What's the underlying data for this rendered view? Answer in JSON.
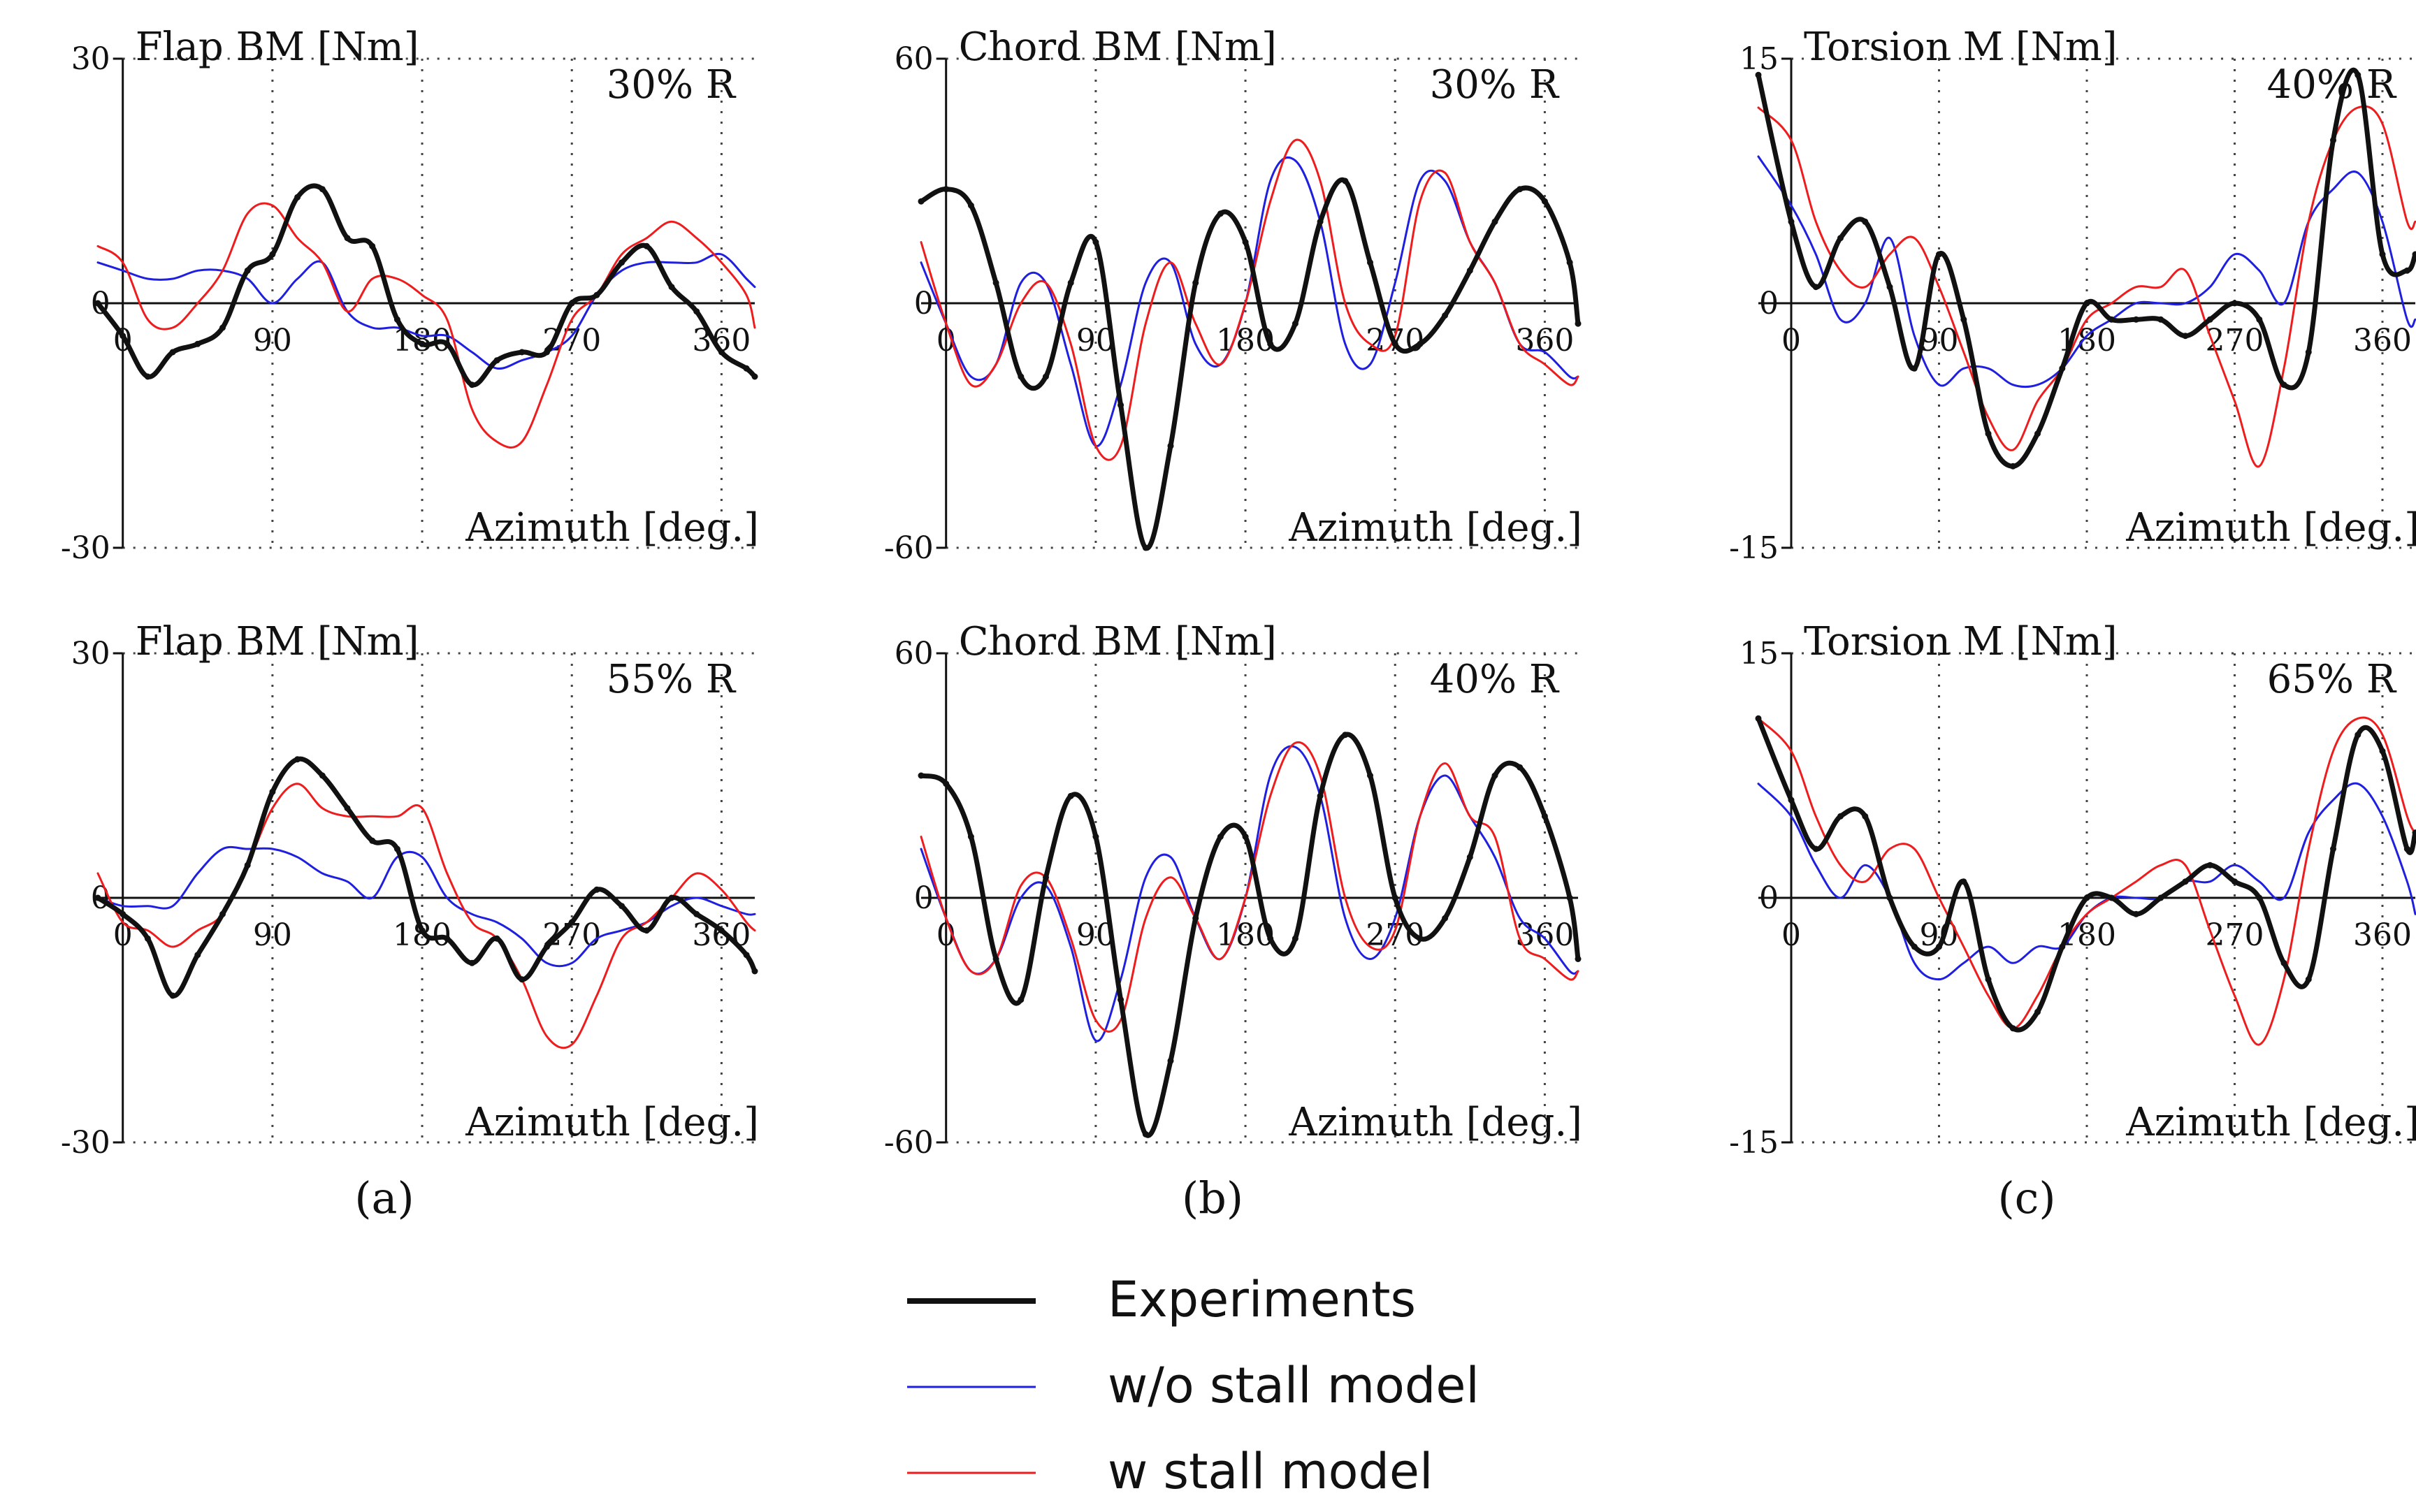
{
  "colors": {
    "experiments": "#111111",
    "without_stall": "#1f1fe0",
    "with_stall": "#ee1c1c"
  },
  "captions": [
    "(a)",
    "(b)",
    "(c)"
  ],
  "legend": [
    {
      "label": "Experiments",
      "series": "experiments"
    },
    {
      "label": "w/o stall model",
      "series": "without_stall"
    },
    {
      "label": "w stall model",
      "series": "with_stall"
    }
  ],
  "chart_data": [
    {
      "type": "line",
      "title": "Flap BM [Nm]",
      "annotation": "30% R",
      "xlabel": "Azimuth [deg.]",
      "ylabel": "Flap BM [Nm]",
      "xlim": [
        -15,
        380
      ],
      "ylim": [
        -30,
        30
      ],
      "xticks": [
        0,
        90,
        180,
        270,
        360
      ],
      "yticks": [
        -30,
        0,
        30
      ],
      "x": [
        -15,
        0,
        15,
        30,
        45,
        60,
        75,
        90,
        105,
        120,
        135,
        150,
        165,
        180,
        195,
        210,
        225,
        240,
        255,
        270,
        285,
        300,
        315,
        330,
        345,
        360,
        375,
        380
      ],
      "series": [
        {
          "name": "Experiments",
          "key": "experiments",
          "values": [
            0,
            -4,
            -9,
            -6,
            -5,
            -3,
            4,
            6,
            13,
            14,
            8,
            7,
            -2,
            -5,
            -5,
            -10,
            -7,
            -6,
            -6,
            0,
            1,
            5,
            7,
            2,
            -1,
            -6,
            -8,
            -9
          ]
        },
        {
          "name": "w/o stall model",
          "key": "without_stall",
          "values": [
            5,
            4,
            3,
            3,
            4,
            4,
            3,
            0,
            3,
            5,
            -1,
            -3,
            -3,
            -4,
            -4,
            -6,
            -8,
            -7,
            -6,
            -4,
            1,
            4,
            5,
            5,
            5,
            6,
            3,
            2
          ]
        },
        {
          "name": "w stall model",
          "key": "with_stall",
          "values": [
            7,
            5,
            -2,
            -3,
            0,
            4,
            11,
            12,
            8,
            5,
            -1,
            3,
            3,
            1,
            -2,
            -13,
            -17,
            -17,
            -10,
            -2,
            1,
            6,
            8,
            10,
            8,
            5,
            1,
            -3
          ]
        }
      ]
    },
    {
      "type": "line",
      "title": "Chord BM [Nm]",
      "annotation": "30% R",
      "xlabel": "Azimuth [deg.]",
      "ylabel": "Chord BM [Nm]",
      "xlim": [
        -15,
        380
      ],
      "ylim": [
        -60,
        60
      ],
      "xticks": [
        0,
        90,
        180,
        270,
        360
      ],
      "yticks": [
        -60,
        0,
        60
      ],
      "x": [
        -15,
        0,
        15,
        30,
        45,
        60,
        75,
        90,
        105,
        120,
        135,
        150,
        165,
        180,
        195,
        210,
        225,
        240,
        255,
        270,
        285,
        300,
        315,
        330,
        345,
        360,
        375,
        380
      ],
      "series": [
        {
          "name": "Experiments",
          "key": "experiments",
          "values": [
            25,
            28,
            24,
            5,
            -18,
            -18,
            5,
            15,
            -25,
            -60,
            -35,
            5,
            22,
            15,
            -10,
            -5,
            20,
            30,
            10,
            -10,
            -10,
            -3,
            8,
            20,
            28,
            25,
            10,
            -5
          ]
        },
        {
          "name": "w/o stall model",
          "key": "without_stall",
          "values": [
            10,
            -5,
            -18,
            -15,
            5,
            5,
            -15,
            -35,
            -20,
            5,
            10,
            -10,
            -15,
            0,
            30,
            35,
            20,
            -10,
            -15,
            5,
            30,
            30,
            15,
            5,
            -10,
            -12,
            -18,
            -18
          ]
        },
        {
          "name": "w stall model",
          "key": "with_stall",
          "values": [
            15,
            -5,
            -20,
            -15,
            0,
            5,
            -10,
            -35,
            -35,
            -5,
            10,
            -5,
            -15,
            0,
            25,
            40,
            30,
            0,
            -10,
            -8,
            25,
            32,
            15,
            5,
            -10,
            -15,
            -20,
            -18
          ]
        }
      ]
    },
    {
      "type": "line",
      "title": "Torsion M [Nm]",
      "annotation": "40% R",
      "xlabel": "Azimuth [deg.]",
      "ylabel": "Torsion M [Nm]",
      "xlim": [
        -20,
        380
      ],
      "ylim": [
        -15,
        15
      ],
      "xticks": [
        0,
        90,
        180,
        270,
        360
      ],
      "yticks": [
        -15,
        0,
        15
      ],
      "x": [
        -20,
        0,
        15,
        30,
        45,
        60,
        75,
        90,
        105,
        120,
        135,
        150,
        165,
        180,
        195,
        210,
        225,
        240,
        255,
        270,
        285,
        300,
        315,
        330,
        345,
        360,
        375,
        380
      ],
      "series": [
        {
          "name": "Experiments",
          "key": "experiments",
          "values": [
            14,
            5,
            1,
            4,
            5,
            1,
            -4,
            3,
            -1,
            -8,
            -10,
            -8,
            -4,
            0,
            -1,
            -1,
            -1,
            -2,
            -1,
            0,
            -1,
            -5,
            -3,
            10,
            14,
            3,
            2,
            3
          ]
        },
        {
          "name": "w/o stall model",
          "key": "without_stall",
          "values": [
            9,
            6,
            3,
            -1,
            0,
            4,
            -2,
            -5,
            -4,
            -4,
            -5,
            -5,
            -4,
            -2,
            -1,
            0,
            0,
            0,
            1,
            3,
            2,
            0,
            5,
            7,
            8,
            5,
            -1,
            -1
          ]
        },
        {
          "name": "w stall model",
          "key": "with_stall",
          "values": [
            12,
            10,
            5,
            2,
            1,
            3,
            4,
            1,
            -3,
            -7,
            -9,
            -6,
            -4,
            -1,
            0,
            1,
            1,
            2,
            -2,
            -6,
            -10,
            -4,
            5,
            10,
            12,
            11,
            5,
            5
          ]
        }
      ]
    },
    {
      "type": "line",
      "title": "Flap BM [Nm]",
      "annotation": "55% R",
      "xlabel": "Azimuth [deg.]",
      "ylabel": "Flap BM [Nm]",
      "xlim": [
        -15,
        380
      ],
      "ylim": [
        -30,
        30
      ],
      "xticks": [
        0,
        90,
        180,
        270,
        360
      ],
      "yticks": [
        -30,
        0,
        30
      ],
      "x": [
        -15,
        0,
        15,
        30,
        45,
        60,
        75,
        90,
        105,
        120,
        135,
        150,
        165,
        180,
        195,
        210,
        225,
        240,
        255,
        270,
        285,
        300,
        315,
        330,
        345,
        360,
        375,
        380
      ],
      "series": [
        {
          "name": "Experiments",
          "key": "experiments",
          "values": [
            0,
            -2,
            -5,
            -12,
            -7,
            -2,
            4,
            13,
            17,
            15,
            11,
            7,
            6,
            -4,
            -5,
            -8,
            -5,
            -10,
            -6,
            -3,
            1,
            -1,
            -4,
            0,
            -2,
            -4,
            -7,
            -9
          ]
        },
        {
          "name": "w/o stall model",
          "key": "without_stall",
          "values": [
            0,
            -1,
            -1,
            -1,
            3,
            6,
            6,
            6,
            5,
            3,
            2,
            0,
            5,
            5,
            0,
            -2,
            -3,
            -5,
            -8,
            -8,
            -5,
            -4,
            -3,
            -1,
            0,
            -1,
            -2,
            -2
          ]
        },
        {
          "name": "w stall model",
          "key": "with_stall",
          "values": [
            3,
            -3,
            -4,
            -6,
            -4,
            -2,
            4,
            11,
            14,
            11,
            10,
            10,
            10,
            11,
            3,
            -3,
            -5,
            -10,
            -17,
            -18,
            -12,
            -5,
            -3,
            0,
            3,
            1,
            -3,
            -4
          ]
        }
      ]
    },
    {
      "type": "line",
      "title": "Chord BM [Nm]",
      "annotation": "40% R",
      "xlabel": "Azimuth [deg.]",
      "ylabel": "Chord BM [Nm]",
      "xlim": [
        -15,
        380
      ],
      "ylim": [
        -60,
        60
      ],
      "xticks": [
        0,
        90,
        180,
        270,
        360
      ],
      "yticks": [
        -60,
        0,
        60
      ],
      "x": [
        -15,
        0,
        15,
        30,
        45,
        60,
        75,
        90,
        105,
        120,
        135,
        150,
        165,
        180,
        195,
        210,
        225,
        240,
        255,
        270,
        285,
        300,
        315,
        330,
        345,
        360,
        375,
        380
      ],
      "series": [
        {
          "name": "Experiments",
          "key": "experiments",
          "values": [
            30,
            28,
            15,
            -15,
            -25,
            5,
            25,
            15,
            -25,
            -58,
            -40,
            -5,
            15,
            15,
            -10,
            -10,
            25,
            40,
            30,
            0,
            -10,
            -5,
            10,
            30,
            32,
            20,
            0,
            -15
          ]
        },
        {
          "name": "w/o stall model",
          "key": "without_stall",
          "values": [
            12,
            -5,
            -18,
            -15,
            0,
            3,
            -12,
            -35,
            -20,
            5,
            10,
            -5,
            -15,
            0,
            30,
            37,
            25,
            -5,
            -15,
            -5,
            20,
            30,
            20,
            10,
            -5,
            -10,
            -18,
            -18
          ]
        },
        {
          "name": "w stall model",
          "key": "with_stall",
          "values": [
            15,
            -5,
            -18,
            -15,
            3,
            5,
            -10,
            -30,
            -30,
            -5,
            5,
            -5,
            -15,
            0,
            25,
            38,
            30,
            0,
            -12,
            -8,
            20,
            33,
            20,
            15,
            -10,
            -15,
            -20,
            -18
          ]
        }
      ]
    },
    {
      "type": "line",
      "title": "Torsion M [Nm]",
      "annotation": "65% R",
      "xlabel": "Azimuth [deg.]",
      "ylabel": "Torsion M [Nm]",
      "xlim": [
        -20,
        380
      ],
      "ylim": [
        -15,
        15
      ],
      "xticks": [
        0,
        90,
        180,
        270,
        360
      ],
      "yticks": [
        -15,
        0,
        15
      ],
      "x": [
        -20,
        0,
        15,
        30,
        45,
        60,
        75,
        90,
        105,
        120,
        135,
        150,
        165,
        180,
        195,
        210,
        225,
        240,
        255,
        270,
        285,
        300,
        315,
        330,
        345,
        360,
        375,
        380
      ],
      "series": [
        {
          "name": "Experiments",
          "key": "experiments",
          "values": [
            11,
            6,
            3,
            5,
            5,
            0,
            -3,
            -3,
            1,
            -5,
            -8,
            -7,
            -3,
            0,
            0,
            -1,
            0,
            1,
            2,
            1,
            0,
            -4,
            -5,
            3,
            10,
            9,
            3,
            4
          ]
        },
        {
          "name": "w/o stall model",
          "key": "without_stall",
          "values": [
            7,
            5,
            2,
            0,
            2,
            0,
            -4,
            -5,
            -4,
            -3,
            -4,
            -3,
            -3,
            -1,
            0,
            0,
            0,
            1,
            1,
            2,
            1,
            0,
            4,
            6,
            7,
            5,
            1,
            -1
          ]
        },
        {
          "name": "w stall model",
          "key": "with_stall",
          "values": [
            11,
            9,
            5,
            2,
            1,
            3,
            3,
            0,
            -3,
            -6,
            -8,
            -6,
            -3,
            -1,
            0,
            1,
            2,
            2,
            -2,
            -6,
            -9,
            -5,
            3,
            9,
            11,
            10,
            5,
            4
          ]
        }
      ]
    }
  ]
}
